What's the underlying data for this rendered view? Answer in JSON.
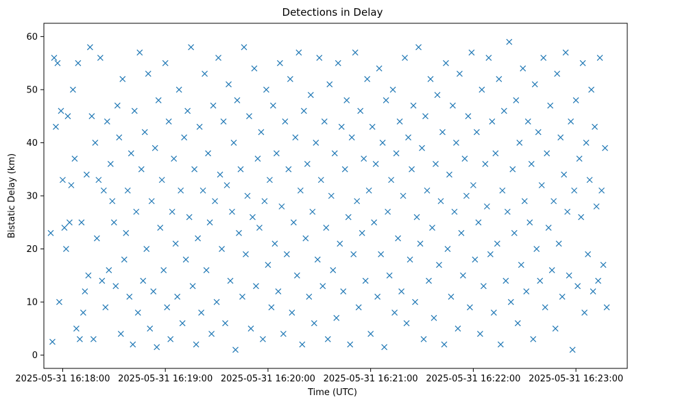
{
  "chart_data": {
    "type": "scatter",
    "title": "Detections in Delay",
    "xlabel": "Time (UTC)",
    "ylabel": "Bistatic Delay (km)",
    "marker": "x",
    "x_is_time": true,
    "xlim_seconds": [
      -131,
      210
    ],
    "ylim": [
      -2.5,
      62.5
    ],
    "x_ticks": [
      "2025-05-31 16:18:00",
      "2025-05-31 16:19:00",
      "2025-05-31 16:20:00",
      "2025-05-31 16:21:00",
      "2025-05-31 16:22:00",
      "2025-05-31 16:23:00"
    ],
    "x_tick_seconds": [
      -120,
      -60,
      0,
      60,
      120,
      180
    ],
    "y_ticks": [
      0,
      10,
      20,
      30,
      40,
      50,
      60
    ],
    "grid": false,
    "series_color": "#1f77b4",
    "points": [
      [
        -127,
        23
      ],
      [
        -126,
        2.5
      ],
      [
        -125,
        56
      ],
      [
        -124,
        43
      ],
      [
        -123,
        55
      ],
      [
        -122,
        10
      ],
      [
        -121,
        46
      ],
      [
        -120,
        33
      ],
      [
        -119,
        24
      ],
      [
        -118,
        20
      ],
      [
        -117,
        45
      ],
      [
        -116,
        25
      ],
      [
        -115,
        32
      ],
      [
        -114,
        50
      ],
      [
        -113,
        37
      ],
      [
        -112,
        5
      ],
      [
        -111,
        55
      ],
      [
        -110,
        3
      ],
      [
        -109,
        25
      ],
      [
        -108,
        8
      ],
      [
        -107,
        12
      ],
      [
        -106,
        34
      ],
      [
        -105,
        15
      ],
      [
        -104,
        58
      ],
      [
        -103,
        45
      ],
      [
        -102,
        3
      ],
      [
        -101,
        40
      ],
      [
        -100,
        22
      ],
      [
        -99,
        33
      ],
      [
        -98,
        56
      ],
      [
        -97,
        14
      ],
      [
        -96,
        31
      ],
      [
        -95,
        9
      ],
      [
        -94,
        44
      ],
      [
        -93,
        16
      ],
      [
        -92,
        36
      ],
      [
        -91,
        29
      ],
      [
        -90,
        25
      ],
      [
        -89,
        13
      ],
      [
        -88,
        47
      ],
      [
        -87,
        41
      ],
      [
        -86,
        4
      ],
      [
        -85,
        52
      ],
      [
        -84,
        18
      ],
      [
        -83,
        23
      ],
      [
        -82,
        31
      ],
      [
        -81,
        11
      ],
      [
        -80,
        38
      ],
      [
        -79,
        2
      ],
      [
        -78,
        46
      ],
      [
        -77,
        27
      ],
      [
        -76,
        8
      ],
      [
        -75,
        57
      ],
      [
        -74,
        35
      ],
      [
        -73,
        14
      ],
      [
        -72,
        42
      ],
      [
        -71,
        20
      ],
      [
        -70,
        53
      ],
      [
        -69,
        5
      ],
      [
        -68,
        29
      ],
      [
        -67,
        12
      ],
      [
        -66,
        39
      ],
      [
        -65,
        1.5
      ],
      [
        -64,
        48
      ],
      [
        -63,
        24
      ],
      [
        -62,
        33
      ],
      [
        -61,
        16
      ],
      [
        -60,
        55
      ],
      [
        -59,
        9
      ],
      [
        -58,
        44
      ],
      [
        -57,
        3
      ],
      [
        -56,
        27
      ],
      [
        -55,
        37
      ],
      [
        -54,
        21
      ],
      [
        -53,
        11
      ],
      [
        -52,
        50
      ],
      [
        -51,
        31
      ],
      [
        -50,
        6
      ],
      [
        -49,
        41
      ],
      [
        -48,
        18
      ],
      [
        -47,
        46
      ],
      [
        -46,
        26
      ],
      [
        -45,
        58
      ],
      [
        -44,
        13
      ],
      [
        -43,
        35
      ],
      [
        -42,
        2
      ],
      [
        -41,
        22
      ],
      [
        -40,
        43
      ],
      [
        -39,
        8
      ],
      [
        -38,
        31
      ],
      [
        -37,
        53
      ],
      [
        -36,
        16
      ],
      [
        -35,
        38
      ],
      [
        -34,
        25
      ],
      [
        -33,
        4
      ],
      [
        -32,
        47
      ],
      [
        -31,
        29
      ],
      [
        -30,
        10
      ],
      [
        -29,
        56
      ],
      [
        -28,
        34
      ],
      [
        -27,
        20
      ],
      [
        -26,
        44
      ],
      [
        -25,
        6
      ],
      [
        -24,
        32
      ],
      [
        -23,
        51
      ],
      [
        -22,
        14
      ],
      [
        -21,
        27
      ],
      [
        -20,
        40
      ],
      [
        -19,
        1
      ],
      [
        -18,
        48
      ],
      [
        -17,
        23
      ],
      [
        -16,
        35
      ],
      [
        -15,
        11
      ],
      [
        -14,
        58
      ],
      [
        -13,
        19
      ],
      [
        -12,
        30
      ],
      [
        -11,
        45
      ],
      [
        -10,
        5
      ],
      [
        -9,
        26
      ],
      [
        -8,
        54
      ],
      [
        -7,
        13
      ],
      [
        -6,
        37
      ],
      [
        -5,
        24
      ],
      [
        -4,
        42
      ],
      [
        -3,
        3
      ],
      [
        -2,
        29
      ],
      [
        -1,
        50
      ],
      [
        0,
        17
      ],
      [
        1,
        33
      ],
      [
        2,
        9
      ],
      [
        3,
        47
      ],
      [
        4,
        21
      ],
      [
        5,
        38
      ],
      [
        6,
        12
      ],
      [
        7,
        55
      ],
      [
        8,
        28
      ],
      [
        9,
        4
      ],
      [
        10,
        44
      ],
      [
        11,
        19
      ],
      [
        12,
        35
      ],
      [
        13,
        52
      ],
      [
        14,
        8
      ],
      [
        15,
        25
      ],
      [
        16,
        41
      ],
      [
        17,
        15
      ],
      [
        18,
        57
      ],
      [
        19,
        31
      ],
      [
        20,
        2
      ],
      [
        21,
        46
      ],
      [
        22,
        22
      ],
      [
        23,
        36
      ],
      [
        24,
        11
      ],
      [
        25,
        49
      ],
      [
        26,
        27
      ],
      [
        27,
        6
      ],
      [
        28,
        40
      ],
      [
        29,
        18
      ],
      [
        30,
        56
      ],
      [
        31,
        33
      ],
      [
        32,
        13
      ],
      [
        33,
        44
      ],
      [
        34,
        24
      ],
      [
        35,
        3
      ],
      [
        36,
        51
      ],
      [
        37,
        30
      ],
      [
        38,
        16
      ],
      [
        39,
        38
      ],
      [
        40,
        7
      ],
      [
        41,
        55
      ],
      [
        42,
        21
      ],
      [
        43,
        43
      ],
      [
        44,
        12
      ],
      [
        45,
        35
      ],
      [
        46,
        48
      ],
      [
        47,
        26
      ],
      [
        48,
        2
      ],
      [
        49,
        41
      ],
      [
        50,
        19
      ],
      [
        51,
        57
      ],
      [
        52,
        29
      ],
      [
        53,
        9
      ],
      [
        54,
        46
      ],
      [
        55,
        23
      ],
      [
        56,
        37
      ],
      [
        57,
        14
      ],
      [
        58,
        52
      ],
      [
        59,
        31
      ],
      [
        60,
        4
      ],
      [
        61,
        43
      ],
      [
        62,
        25
      ],
      [
        63,
        36
      ],
      [
        64,
        11
      ],
      [
        65,
        54
      ],
      [
        66,
        19
      ],
      [
        67,
        40
      ],
      [
        68,
        1.5
      ],
      [
        69,
        48
      ],
      [
        70,
        27
      ],
      [
        71,
        15
      ],
      [
        72,
        33
      ],
      [
        73,
        50
      ],
      [
        74,
        8
      ],
      [
        75,
        38
      ],
      [
        76,
        22
      ],
      [
        77,
        44
      ],
      [
        78,
        12
      ],
      [
        79,
        30
      ],
      [
        80,
        56
      ],
      [
        81,
        6
      ],
      [
        82,
        41
      ],
      [
        83,
        18
      ],
      [
        84,
        35
      ],
      [
        85,
        47
      ],
      [
        86,
        10
      ],
      [
        87,
        26
      ],
      [
        88,
        58
      ],
      [
        89,
        21
      ],
      [
        90,
        39
      ],
      [
        91,
        3
      ],
      [
        92,
        45
      ],
      [
        93,
        31
      ],
      [
        94,
        14
      ],
      [
        95,
        52
      ],
      [
        96,
        24
      ],
      [
        97,
        7
      ],
      [
        98,
        36
      ],
      [
        99,
        49
      ],
      [
        100,
        17
      ],
      [
        101,
        29
      ],
      [
        102,
        42
      ],
      [
        103,
        2
      ],
      [
        104,
        55
      ],
      [
        105,
        20
      ],
      [
        106,
        34
      ],
      [
        107,
        11
      ],
      [
        108,
        47
      ],
      [
        109,
        27
      ],
      [
        110,
        40
      ],
      [
        111,
        5
      ],
      [
        112,
        53
      ],
      [
        113,
        23
      ],
      [
        114,
        15
      ],
      [
        115,
        37
      ],
      [
        116,
        30
      ],
      [
        117,
        45
      ],
      [
        118,
        9
      ],
      [
        119,
        57
      ],
      [
        120,
        32
      ],
      [
        121,
        18
      ],
      [
        122,
        42
      ],
      [
        123,
        25
      ],
      [
        124,
        4
      ],
      [
        125,
        50
      ],
      [
        126,
        13
      ],
      [
        127,
        36
      ],
      [
        128,
        28
      ],
      [
        129,
        56
      ],
      [
        130,
        19
      ],
      [
        131,
        44
      ],
      [
        132,
        8
      ],
      [
        133,
        38
      ],
      [
        134,
        21
      ],
      [
        135,
        52
      ],
      [
        136,
        2
      ],
      [
        137,
        31
      ],
      [
        138,
        46
      ],
      [
        139,
        14
      ],
      [
        140,
        27
      ],
      [
        141,
        59
      ],
      [
        142,
        10
      ],
      [
        143,
        35
      ],
      [
        144,
        23
      ],
      [
        145,
        48
      ],
      [
        146,
        6
      ],
      [
        147,
        40
      ],
      [
        148,
        17
      ],
      [
        149,
        54
      ],
      [
        150,
        29
      ],
      [
        151,
        12
      ],
      [
        152,
        44
      ],
      [
        153,
        25
      ],
      [
        154,
        36
      ],
      [
        155,
        3
      ],
      [
        156,
        51
      ],
      [
        157,
        20
      ],
      [
        158,
        42
      ],
      [
        159,
        14
      ],
      [
        160,
        32
      ],
      [
        161,
        56
      ],
      [
        162,
        9
      ],
      [
        163,
        38
      ],
      [
        164,
        24
      ],
      [
        165,
        47
      ],
      [
        166,
        16
      ],
      [
        167,
        29
      ],
      [
        168,
        5
      ],
      [
        169,
        53
      ],
      [
        170,
        21
      ],
      [
        171,
        41
      ],
      [
        172,
        11
      ],
      [
        173,
        34
      ],
      [
        174,
        57
      ],
      [
        175,
        27
      ],
      [
        176,
        15
      ],
      [
        177,
        44
      ],
      [
        178,
        1
      ],
      [
        179,
        31
      ],
      [
        180,
        48
      ],
      [
        181,
        13
      ],
      [
        182,
        37
      ],
      [
        183,
        26
      ],
      [
        184,
        55
      ],
      [
        185,
        8
      ],
      [
        186,
        40
      ],
      [
        187,
        19
      ],
      [
        188,
        33
      ],
      [
        189,
        50
      ],
      [
        190,
        12
      ],
      [
        191,
        43
      ],
      [
        192,
        28
      ],
      [
        193,
        14
      ],
      [
        194,
        56
      ],
      [
        195,
        31
      ],
      [
        196,
        17
      ],
      [
        197,
        39
      ],
      [
        198,
        9
      ]
    ]
  }
}
